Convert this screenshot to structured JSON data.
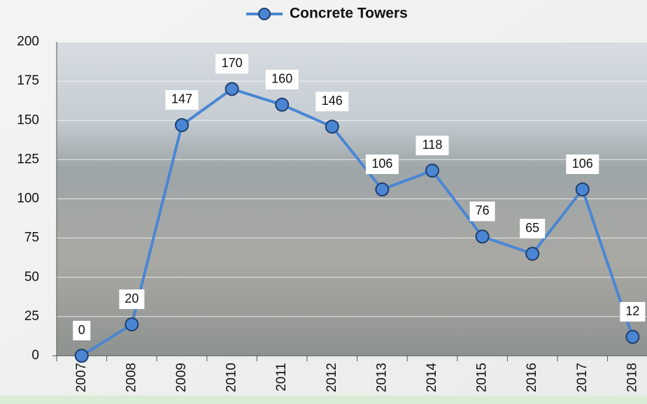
{
  "chart_data": {
    "type": "line",
    "categories": [
      "2007",
      "2008",
      "2009",
      "2010",
      "2011",
      "2012",
      "2013",
      "2014",
      "2015",
      "2016",
      "2017",
      "2018"
    ],
    "series": [
      {
        "name": "Concrete Towers",
        "color": "#4a86d4",
        "values": [
          0,
          20,
          147,
          170,
          160,
          146,
          106,
          118,
          76,
          65,
          106,
          12
        ]
      }
    ],
    "ylim": [
      0,
      200
    ],
    "yticks": [
      0,
      25,
      50,
      75,
      100,
      125,
      150,
      175,
      200
    ],
    "grid": true,
    "legend": "top",
    "data_labels": true
  }
}
